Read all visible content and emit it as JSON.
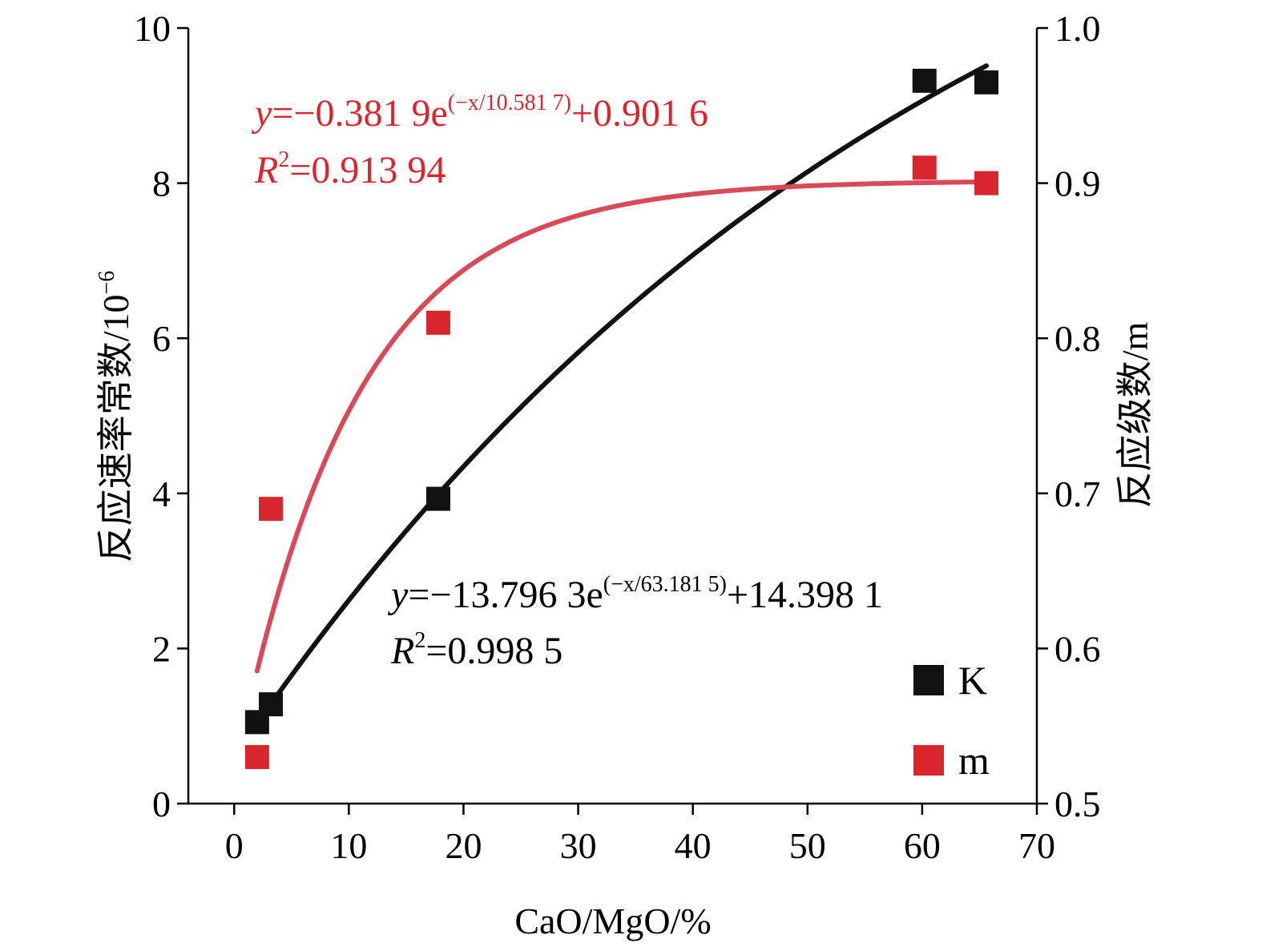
{
  "chart_data": {
    "type": "scatter",
    "xlabel": "CaO/MgO/%",
    "ylabel_left": "反应速率常数/10",
    "ylabel_left_exponent": "−6",
    "ylabel_right": "反应级数/m",
    "xlim": [
      -4,
      70
    ],
    "ylim_left": [
      0,
      10
    ],
    "ylim_right": [
      0.5,
      1.0
    ],
    "x_ticks": [
      0,
      10,
      20,
      30,
      40,
      50,
      60,
      70
    ],
    "x_tick_labels": [
      "0",
      "10",
      "20",
      "30",
      "40",
      "50",
      "60",
      "70"
    ],
    "y_left_ticks": [
      0,
      2,
      4,
      6,
      8,
      10
    ],
    "y_left_tick_labels": [
      "0",
      "2",
      "4",
      "6",
      "8",
      "10"
    ],
    "y_right_ticks": [
      0.5,
      0.6,
      0.7,
      0.8,
      0.9,
      1.0
    ],
    "y_right_tick_labels": [
      "0.5",
      "0.6",
      "0.7",
      "0.8",
      "0.9",
      "1.0"
    ],
    "grid": false,
    "legend_position": "bottom-right",
    "series": [
      {
        "name": "K",
        "axis": "left",
        "color": "#111111",
        "x": [
          2.0,
          3.2,
          17.8,
          60.2,
          65.6
        ],
        "y": [
          1.05,
          1.28,
          3.93,
          9.32,
          9.3
        ],
        "fit": {
          "a": -13.7963,
          "t": 63.1815,
          "c": 14.3981,
          "x_range": [
            2.0,
            65.6
          ]
        },
        "equation": {
          "y_sym": "y",
          "lhs": "=−13.796 3e",
          "sup": "(−x/63.181 5)",
          "rhs": "+14.398 1",
          "r_sym": "R",
          "r_sup": "2",
          "r_val": "=0.998 5"
        }
      },
      {
        "name": "m",
        "axis": "right",
        "color": "#d9262c",
        "fit_color": "#d84a5a",
        "x": [
          2.0,
          3.2,
          17.8,
          60.2,
          65.6
        ],
        "y": [
          0.53,
          0.69,
          0.81,
          0.91,
          0.9
        ],
        "fit": {
          "a": -0.3819,
          "t": 10.5817,
          "c": 0.9016,
          "x_range": [
            2.0,
            65.6
          ]
        },
        "equation": {
          "y_sym": "y",
          "lhs": "=−0.381 9e",
          "sup": "(−x/10.581 7)",
          "rhs": "+0.901 6",
          "r_sym": "R",
          "r_sup": "2",
          "r_val": "=0.913 94"
        }
      }
    ]
  }
}
